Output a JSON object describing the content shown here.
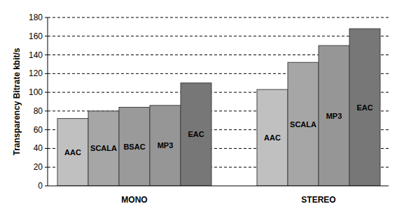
{
  "chart_data": {
    "type": "bar",
    "y_label": "Transparency Bitrate kbit/s",
    "categories": [
      "MONO",
      "STEREO"
    ],
    "series": [
      {
        "name": "AAC",
        "color": "#c0c0c0",
        "values": [
          72,
          103
        ]
      },
      {
        "name": "SCALA",
        "color": "#a6a6a6",
        "values": [
          80,
          132
        ]
      },
      {
        "name": "BSAC",
        "color": "#9a9a9a",
        "values": [
          84,
          null
        ]
      },
      {
        "name": "MP3",
        "color": "#969696",
        "values": [
          86,
          150
        ]
      },
      {
        "name": "EAC",
        "color": "#777777",
        "values": [
          110,
          168
        ]
      }
    ],
    "ylim": [
      0,
      180
    ],
    "yticks": [
      0,
      20,
      40,
      60,
      80,
      100,
      120,
      140,
      160,
      180
    ],
    "grid": true
  }
}
